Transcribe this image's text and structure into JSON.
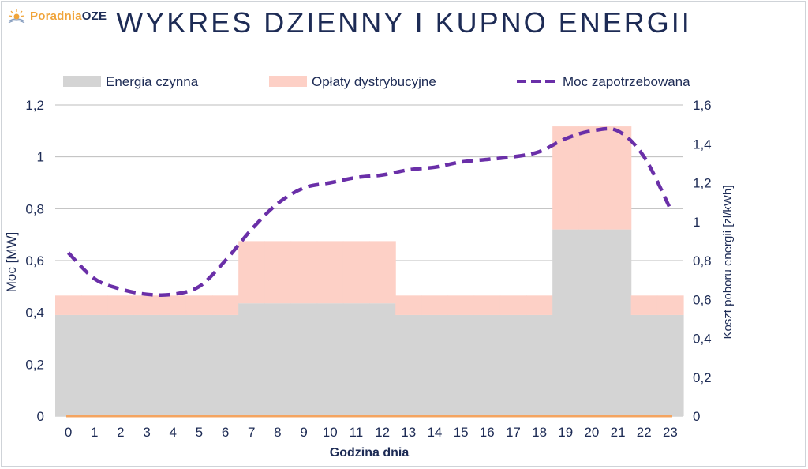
{
  "brand": {
    "name_part1": "Poradnia",
    "name_part2": "OZE"
  },
  "chart_data": {
    "type": "bar",
    "title": "WYKRES DZIENNY I KUPNO ENERGII",
    "xlabel": "Godzina dnia",
    "ylabel_left": "Moc [MW]",
    "ylabel_right": "Koszt poboru energii [zł/kWh]",
    "categories": [
      "0",
      "1",
      "2",
      "3",
      "4",
      "5",
      "6",
      "7",
      "8",
      "9",
      "10",
      "11",
      "12",
      "13",
      "14",
      "15",
      "16",
      "17",
      "18",
      "19",
      "20",
      "21",
      "22",
      "23"
    ],
    "y_left_lim": [
      0,
      1.2
    ],
    "y_left_ticks": [
      "0",
      "0,2",
      "0,4",
      "0,6",
      "0,8",
      "1",
      "1,2"
    ],
    "y_right_lim": [
      0,
      1.6
    ],
    "y_right_ticks": [
      "0",
      "0,2",
      "0,4",
      "0,6",
      "0,8",
      "1",
      "1,2",
      "1,4",
      "1,6"
    ],
    "legend_position": "top",
    "grid": true,
    "series": [
      {
        "name": "Energia czynna",
        "type": "stacked-bar",
        "axis": "right",
        "color": "#d4d4d4",
        "values": [
          0.52,
          0.52,
          0.52,
          0.52,
          0.52,
          0.52,
          0.52,
          0.58,
          0.58,
          0.58,
          0.58,
          0.58,
          0.58,
          0.52,
          0.52,
          0.52,
          0.52,
          0.52,
          0.52,
          0.96,
          0.96,
          0.96,
          0.52,
          0.52
        ]
      },
      {
        "name": "Opłaty dystrybucyjne",
        "type": "stacked-bar",
        "axis": "right",
        "color": "#fdd0c6",
        "values": [
          0.1,
          0.1,
          0.1,
          0.1,
          0.1,
          0.1,
          0.1,
          0.32,
          0.32,
          0.32,
          0.32,
          0.32,
          0.32,
          0.1,
          0.1,
          0.1,
          0.1,
          0.1,
          0.1,
          0.53,
          0.53,
          0.53,
          0.1,
          0.1
        ]
      },
      {
        "name": "Moc zapotrzebowana",
        "type": "line",
        "axis": "left",
        "style": "dashed",
        "color": "#6a2fa8",
        "values": [
          0.63,
          0.53,
          0.49,
          0.47,
          0.47,
          0.5,
          0.6,
          0.72,
          0.82,
          0.88,
          0.9,
          0.92,
          0.93,
          0.95,
          0.96,
          0.98,
          0.99,
          1.0,
          1.02,
          1.07,
          1.1,
          1.1,
          1.0,
          0.8
        ]
      }
    ],
    "baseline_color": "#f4a460"
  }
}
